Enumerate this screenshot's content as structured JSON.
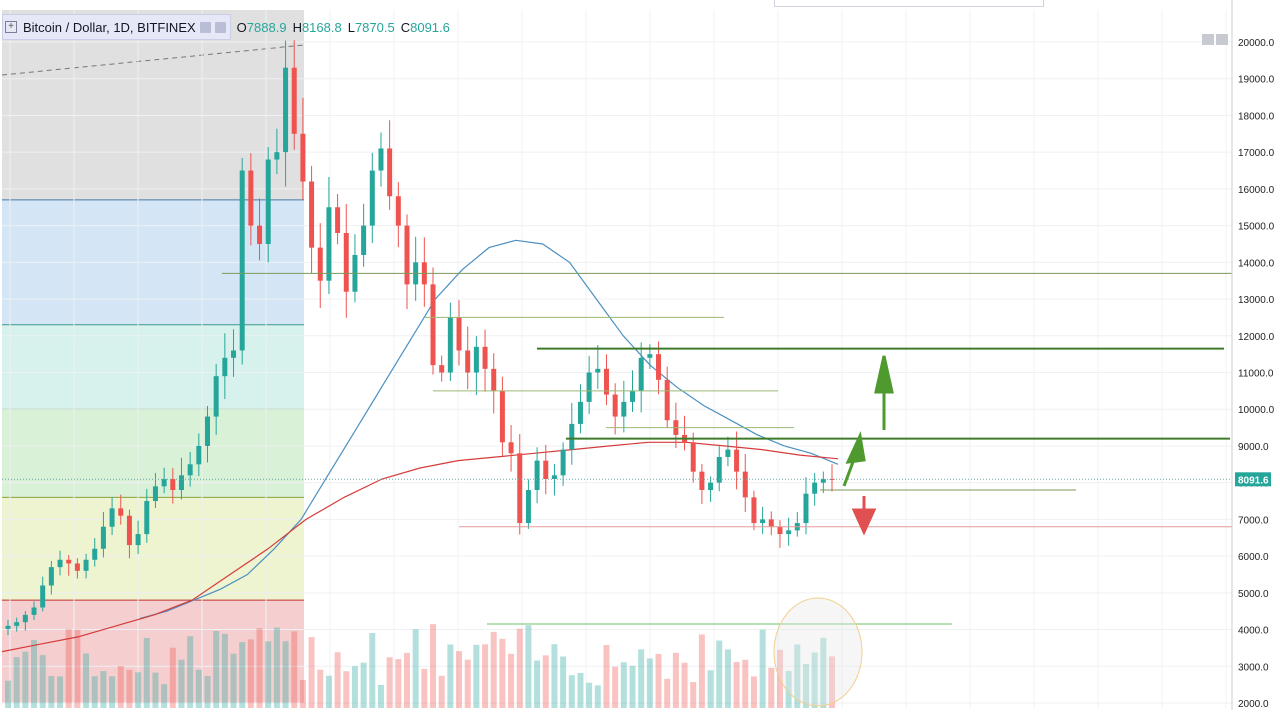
{
  "legend": {
    "symbol": "Bitcoin / Dollar, 1D, BITFINEX",
    "o_label": "O",
    "o_value": "7888.9",
    "h_label": "H",
    "h_value": "8168.8",
    "l_label": "L",
    "l_value": "7870.5",
    "c_label": "C",
    "c_value": "8091.6"
  },
  "chart_data": {
    "type": "candlestick",
    "title": "Bitcoin / Dollar, 1D, BITFINEX",
    "ylim": [
      2000,
      20000
    ],
    "y_ticks": [
      "2000.0",
      "3000.0",
      "4000.0",
      "5000.0",
      "6000.0",
      "7000.0",
      "8000.0",
      "9000.0",
      "10000.0",
      "11000.0",
      "12000.0",
      "13000.0",
      "14000.0",
      "15000.0",
      "16000.0",
      "17000.0",
      "18000.0",
      "19000.0",
      "20000.0"
    ],
    "last_price": "8091.6",
    "close_series": [
      4100,
      4200,
      4400,
      4600,
      5200,
      5700,
      5900,
      5800,
      5600,
      5900,
      6200,
      6800,
      7300,
      7100,
      6300,
      6600,
      7500,
      7900,
      8100,
      7800,
      8200,
      8500,
      9000,
      9800,
      10900,
      11400,
      11600,
      16500,
      15000,
      14500,
      16800,
      17000,
      19300,
      17500,
      16200,
      14400,
      13500,
      15500,
      14800,
      13200,
      14200,
      15000,
      16500,
      17100,
      15800,
      15000,
      13400,
      14000,
      13400,
      11200,
      11000,
      12500,
      11600,
      11000,
      11700,
      11100,
      10500,
      9100,
      8800,
      6900,
      7800,
      8600,
      8100,
      8200,
      8900,
      9600,
      10200,
      11000,
      11100,
      10400,
      9800,
      10200,
      10500,
      11400,
      11500,
      10800,
      9700,
      9300,
      9100,
      8300,
      7800,
      8000,
      8700,
      8900,
      8300,
      7600,
      6900,
      7000,
      6800,
      6600,
      6700,
      6900,
      7700,
      8000,
      8100,
      8091.6
    ],
    "ma_50": [
      4300,
      4500,
      4800,
      5100,
      5500,
      6200,
      7000,
      8200,
      9400,
      10600,
      11800,
      13000,
      13800,
      14400,
      14600,
      14500,
      14000,
      13000,
      12000,
      11200,
      10600,
      10100,
      9700,
      9300,
      9000,
      8800,
      8500
    ],
    "ma_200": [
      3400,
      3600,
      3800,
      4100,
      4400,
      4800,
      5500,
      6200,
      7000,
      7600,
      8100,
      8400,
      8600,
      8700,
      8800,
      8900,
      9000,
      9100,
      9100,
      9000,
      8900,
      8750,
      8650
    ],
    "overlays": [
      {
        "type": "fibonacci",
        "levels": [
          20000,
          15700,
          12300,
          10000,
          7600,
          4800,
          2000
        ]
      },
      {
        "type": "hline",
        "value": 13700
      },
      {
        "type": "hline",
        "value": 12500
      },
      {
        "type": "hline",
        "value": 11650
      },
      {
        "type": "hline",
        "value": 10500
      },
      {
        "type": "hline",
        "value": 9500
      },
      {
        "type": "hline",
        "value": 9200
      },
      {
        "type": "hline",
        "value": 7800
      },
      {
        "type": "hline",
        "value": 6800
      },
      {
        "type": "hline",
        "value": 4150
      }
    ],
    "annotations": [
      {
        "type": "arrow",
        "direction": "up",
        "color": "green"
      },
      {
        "type": "arrow",
        "direction": "up",
        "color": "green"
      },
      {
        "type": "arrow",
        "direction": "down",
        "color": "red"
      }
    ],
    "grid": true,
    "legend_position": "top-left"
  },
  "colors": {
    "up": "#26a69a",
    "down": "#ef5350",
    "ma_50": "#4a90c2",
    "ma_200": "#d63b3b",
    "level_line": "#5a8a3a",
    "fib_zone_1": "#e0e0e0",
    "fib_zone_2": "#d4e6f5",
    "fib_zone_3": "#d7f2ec",
    "fib_zone_4": "#d9f1d6",
    "fib_zone_5": "#eef3d0",
    "fib_zone_6": "#f5cfcf",
    "arrow_up": "#4e9a2f",
    "arrow_down": "#e05050"
  }
}
